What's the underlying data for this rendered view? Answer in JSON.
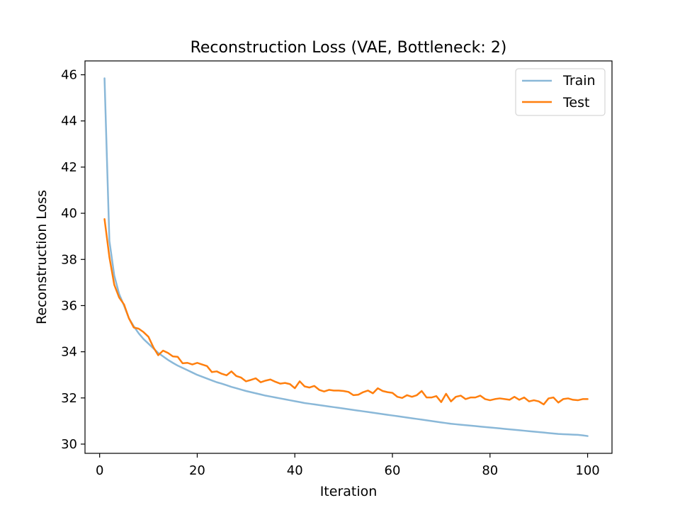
{
  "chart_data": {
    "type": "line",
    "title": "Reconstruction Loss (VAE, Bottleneck: 2)",
    "xlabel": "Iteration",
    "ylabel": "Reconstruction Loss",
    "xlim": [
      -3,
      105
    ],
    "ylim": [
      29.6,
      46.6
    ],
    "xticks": [
      0,
      20,
      40,
      60,
      80,
      100
    ],
    "yticks": [
      30,
      32,
      34,
      36,
      38,
      40,
      42,
      44,
      46
    ],
    "grid": false,
    "legend": {
      "position": "top-right",
      "entries": [
        "Train",
        "Test"
      ]
    },
    "x": [
      1,
      2,
      3,
      4,
      5,
      6,
      7,
      8,
      9,
      10,
      11,
      12,
      13,
      14,
      15,
      16,
      17,
      18,
      19,
      20,
      21,
      22,
      23,
      24,
      25,
      26,
      27,
      28,
      29,
      30,
      31,
      32,
      33,
      34,
      35,
      36,
      37,
      38,
      39,
      40,
      41,
      42,
      43,
      44,
      45,
      46,
      47,
      48,
      49,
      50,
      51,
      52,
      53,
      54,
      55,
      56,
      57,
      58,
      59,
      60,
      61,
      62,
      63,
      64,
      65,
      66,
      67,
      68,
      69,
      70,
      71,
      72,
      73,
      74,
      75,
      76,
      77,
      78,
      79,
      80,
      81,
      82,
      83,
      84,
      85,
      86,
      87,
      88,
      89,
      90,
      91,
      92,
      93,
      94,
      95,
      96,
      97,
      98,
      99,
      100
    ],
    "series": [
      {
        "name": "Train",
        "color": "#8ab8d8",
        "values": [
          45.85,
          38.8,
          37.3,
          36.5,
          36.0,
          35.45,
          35.1,
          34.8,
          34.55,
          34.35,
          34.15,
          33.95,
          33.8,
          33.65,
          33.52,
          33.4,
          33.3,
          33.2,
          33.1,
          33.0,
          32.92,
          32.84,
          32.76,
          32.68,
          32.62,
          32.55,
          32.48,
          32.42,
          32.36,
          32.3,
          32.25,
          32.2,
          32.15,
          32.1,
          32.06,
          32.02,
          31.98,
          31.94,
          31.9,
          31.86,
          31.82,
          31.78,
          31.75,
          31.72,
          31.69,
          31.66,
          31.63,
          31.6,
          31.57,
          31.54,
          31.51,
          31.48,
          31.45,
          31.42,
          31.39,
          31.36,
          31.33,
          31.3,
          31.27,
          31.24,
          31.21,
          31.18,
          31.15,
          31.12,
          31.09,
          31.06,
          31.03,
          31.0,
          30.97,
          30.94,
          30.91,
          30.88,
          30.86,
          30.84,
          30.82,
          30.8,
          30.78,
          30.76,
          30.74,
          30.72,
          30.7,
          30.68,
          30.66,
          30.64,
          30.62,
          30.6,
          30.58,
          30.56,
          30.54,
          30.52,
          30.5,
          30.48,
          30.46,
          30.44,
          30.43,
          30.42,
          30.41,
          30.4,
          30.38,
          30.35
        ]
      },
      {
        "name": "Test",
        "color": "#ff7f0e",
        "values": [
          39.75,
          38.1,
          36.9,
          36.35,
          36.05,
          35.45,
          35.05,
          35.0,
          34.85,
          34.65,
          34.2,
          33.85,
          34.05,
          33.95,
          33.8,
          33.78,
          33.5,
          33.52,
          33.45,
          33.52,
          33.45,
          33.38,
          33.12,
          33.15,
          33.05,
          32.98,
          33.15,
          32.95,
          32.88,
          32.72,
          32.78,
          32.85,
          32.68,
          32.75,
          32.8,
          32.7,
          32.62,
          32.65,
          32.6,
          32.42,
          32.72,
          32.5,
          32.45,
          32.52,
          32.35,
          32.28,
          32.35,
          32.32,
          32.32,
          32.3,
          32.26,
          32.12,
          32.14,
          32.25,
          32.32,
          32.2,
          32.42,
          32.3,
          32.25,
          32.22,
          32.05,
          32.0,
          32.12,
          32.05,
          32.12,
          32.3,
          32.02,
          32.02,
          32.08,
          31.82,
          32.18,
          31.85,
          32.05,
          32.1,
          31.95,
          32.02,
          32.02,
          32.1,
          31.95,
          31.9,
          31.95,
          31.98,
          31.95,
          31.92,
          32.05,
          31.92,
          32.02,
          31.85,
          31.9,
          31.85,
          31.72,
          31.98,
          32.02,
          31.8,
          31.95,
          31.98,
          31.92,
          31.9,
          31.95,
          31.95
        ]
      }
    ]
  }
}
